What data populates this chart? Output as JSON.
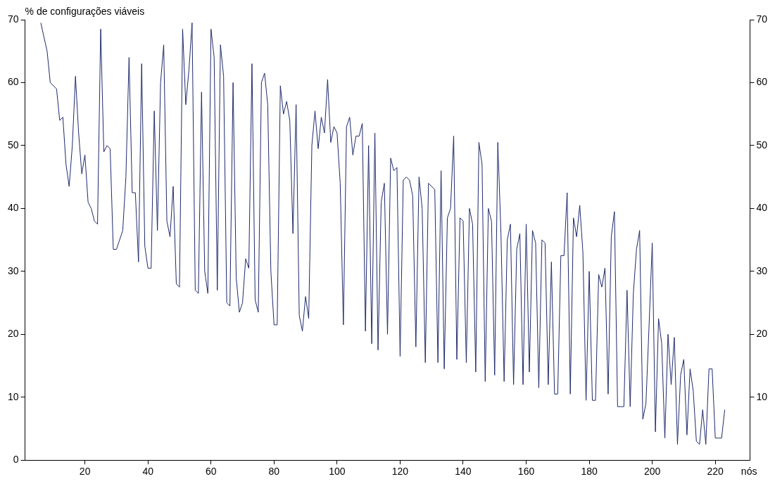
{
  "chart_data": {
    "type": "line",
    "xlabel": "nós",
    "ylabel": "% de configurações viáveis",
    "xlim": [
      1,
      231
    ],
    "xticks": [
      20,
      40,
      60,
      80,
      100,
      120,
      140,
      160,
      180,
      200,
      220
    ],
    "ylim": [
      0,
      70
    ],
    "yticks": [
      0,
      10,
      20,
      30,
      40,
      50,
      60,
      70
    ],
    "y2lim": [
      0,
      70
    ],
    "y2ticks": [
      10,
      20,
      30,
      40,
      50,
      60,
      70
    ],
    "grid": false,
    "legend": false,
    "marker": "none",
    "line_style": "solid",
    "series": [
      {
        "color": "#1f2a6b",
        "x": [
          6,
          8,
          9,
          11,
          12,
          13,
          14,
          15,
          16,
          17,
          18,
          19,
          20,
          21,
          22,
          23,
          24,
          25,
          26,
          27,
          28,
          29,
          30,
          31,
          32,
          33,
          34,
          35,
          36,
          37,
          38,
          39,
          40,
          41,
          42,
          43,
          44,
          45,
          46,
          47,
          48,
          49,
          50,
          51,
          52,
          53,
          54,
          55,
          56,
          57,
          58,
          59,
          60,
          61,
          62,
          63,
          64,
          65,
          66,
          67,
          68,
          69,
          70,
          71,
          72,
          73,
          74,
          75,
          76,
          77,
          78,
          79,
          80,
          81,
          82,
          83,
          84,
          85,
          86,
          87,
          88,
          89,
          90,
          91,
          92,
          93,
          94,
          95,
          96,
          97,
          98,
          99,
          100,
          101,
          102,
          103,
          104,
          105,
          106,
          107,
          108,
          109,
          110,
          111,
          112,
          113,
          114,
          115,
          116,
          117,
          118,
          119,
          120,
          121,
          122,
          123,
          124,
          125,
          126,
          127,
          128,
          129,
          130,
          131,
          132,
          133,
          134,
          135,
          136,
          137,
          138,
          139,
          140,
          141,
          142,
          143,
          144,
          145,
          146,
          147,
          148,
          149,
          150,
          151,
          152,
          153,
          154,
          155,
          156,
          157,
          158,
          159,
          160,
          161,
          162,
          163,
          164,
          165,
          166,
          167,
          168,
          169,
          170,
          171,
          172,
          173,
          174,
          175,
          176,
          177,
          178,
          179,
          180,
          181,
          182,
          183,
          184,
          185,
          186,
          187,
          188,
          189,
          190,
          191,
          192,
          193,
          194,
          195,
          196,
          197,
          198,
          199,
          200,
          201,
          202,
          203,
          204,
          205,
          206,
          207,
          208,
          209,
          210,
          211,
          212,
          213,
          214,
          215,
          216,
          217,
          218,
          219,
          220,
          221,
          222,
          223
        ],
        "values": [
          69.5,
          65,
          60,
          59,
          54,
          54.5,
          47,
          43.5,
          50,
          61,
          52,
          45.5,
          48.5,
          41,
          40,
          38,
          37.5,
          68.5,
          49,
          50,
          49.5,
          33.5,
          33.5,
          35,
          36.5,
          45,
          64,
          42.5,
          42.5,
          31.5,
          63,
          34,
          30.5,
          30.5,
          55.5,
          36.5,
          60,
          66,
          38,
          35.5,
          43.5,
          28,
          27.5,
          68.5,
          56.5,
          62,
          69.5,
          27,
          26.5,
          58.5,
          30,
          26.5,
          68.5,
          64,
          27,
          66,
          61,
          25,
          24.5,
          60,
          29,
          23.5,
          25,
          32,
          30.5,
          63,
          25.5,
          23.5,
          60,
          61.5,
          56.5,
          30,
          21.5,
          21.5,
          59.5,
          55,
          57,
          54,
          36,
          56.5,
          23,
          20.5,
          26,
          22.5,
          50,
          55.5,
          49.5,
          54.5,
          52,
          60.5,
          50.5,
          53,
          52,
          44,
          21.5,
          53,
          54.5,
          48.5,
          51.5,
          51.5,
          53.5,
          20.5,
          50,
          18.5,
          52,
          17.5,
          41,
          44,
          20,
          48,
          46,
          46.5,
          16.5,
          44.5,
          45,
          44.5,
          42,
          18,
          45,
          40,
          15.5,
          44,
          43.5,
          43,
          15.5,
          46,
          14.5,
          38.5,
          40,
          51.5,
          16,
          38.5,
          38,
          15.5,
          40,
          37.5,
          14,
          50.5,
          47,
          12.5,
          40,
          38,
          13.5,
          50.5,
          36,
          12.5,
          35,
          37.5,
          12,
          33.5,
          36,
          12,
          37.5,
          14,
          36.5,
          34.5,
          11.5,
          35,
          34.5,
          12,
          31.5,
          10.5,
          10.5,
          32.5,
          32.5,
          42.5,
          10.5,
          38.5,
          35.5,
          40.5,
          33,
          9.5,
          30,
          9.5,
          9.5,
          29.5,
          27.5,
          30.5,
          10.5,
          35.5,
          39.5,
          8.5,
          8.5,
          8.5,
          27,
          8.5,
          26.5,
          33.5,
          36.5,
          6.5,
          9,
          21.5,
          34.5,
          4.5,
          22.5,
          18.5,
          3.5,
          20,
          12,
          19.5,
          2.5,
          13.5,
          16,
          4,
          14.5,
          11,
          3,
          2.5,
          8,
          2.5,
          14.5,
          14.5,
          3.5,
          3.5,
          3.5,
          8
        ]
      }
    ]
  }
}
